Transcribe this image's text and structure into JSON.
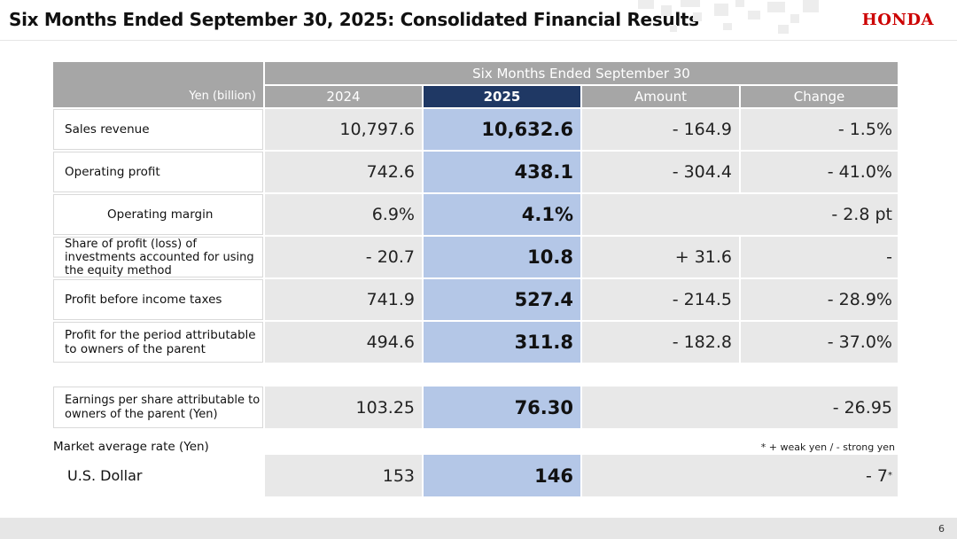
{
  "header": {
    "title": "Six Months Ended September 30, 2025: Consolidated Financial Results",
    "logo_text": "HONDA",
    "logo_color": "#cc0000"
  },
  "table": {
    "unit_label": "Yen (billion)",
    "span_header": "Six Months Ended September 30",
    "columns": [
      "2024",
      "2025",
      "Amount",
      "Change"
    ],
    "rows": [
      {
        "label": "Sales revenue",
        "y2024": "10,797.6",
        "y2025": "10,632.6",
        "amount": "- 164.9",
        "change": "- 1.5%"
      },
      {
        "label": "Operating profit",
        "y2024": "742.6",
        "y2025": "438.1",
        "amount": "- 304.4",
        "change": "- 41.0%"
      },
      {
        "label": "Operating margin",
        "y2024": "6.9%",
        "y2025": "4.1%",
        "change": "- 2.8 pt"
      },
      {
        "label": "Share of profit (loss) of investments accounted for using the equity method",
        "y2024": "- 20.7",
        "y2025": "10.8",
        "amount": "+ 31.6",
        "change": "-"
      },
      {
        "label": "Profit before income taxes",
        "y2024": "741.9",
        "y2025": "527.4",
        "amount": "- 214.5",
        "change": "- 28.9%"
      },
      {
        "label": "Profit for the period attributable to owners of the parent",
        "y2024": "494.6",
        "y2025": "311.8",
        "amount": "- 182.8",
        "change": "- 37.0%"
      }
    ],
    "eps": {
      "label": "Earnings per share attributable to owners of the parent (Yen)",
      "y2024": "103.25",
      "y2025": "76.30",
      "change": "- 26.95"
    }
  },
  "rates": {
    "label": "Market average rate (Yen)",
    "footnote": "* + weak yen / - strong yen",
    "usd": {
      "label": "U.S. Dollar",
      "y2024": "153",
      "y2025": "146",
      "change": "- 7",
      "mark": "*"
    }
  },
  "footer": {
    "page_number": "6"
  },
  "colors": {
    "header_gray": "#a6a6a6",
    "year_2025_header": "#1f3864",
    "year_2025_cells": "#b4c7e7",
    "cell_gray": "#e8e8e8"
  }
}
